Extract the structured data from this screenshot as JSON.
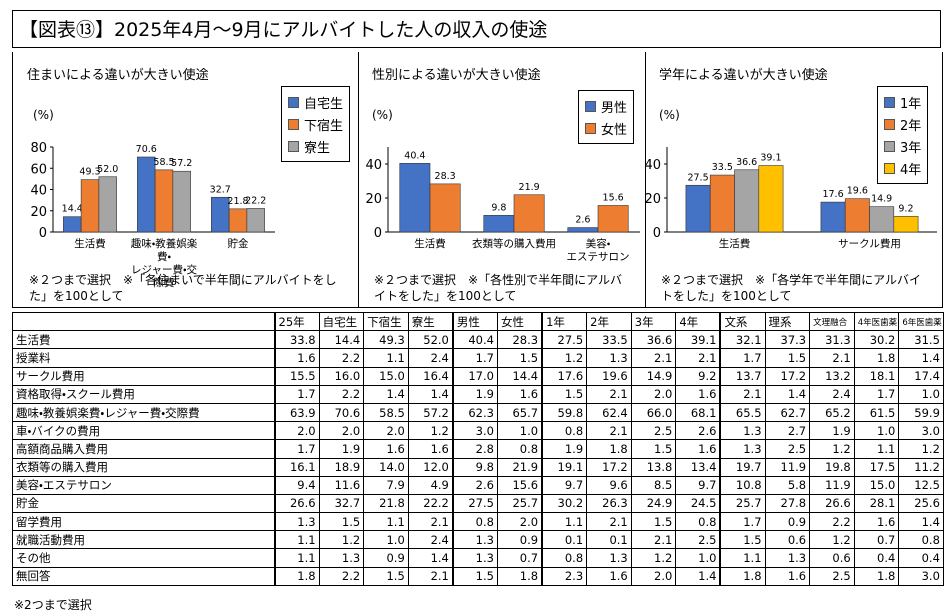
{
  "title": "【図表⑬】2025年4月～9月にアルバイトした人の収入の使途",
  "chart_data": [
    {
      "type": "bar",
      "title": "住まいによる違いが大きい使途",
      "y_label": "(%)",
      "note": "※２つまで選択　※「各住まいで半年間にアルバイトをした」を100として",
      "categories": [
        "生活費",
        "趣味・教養娯楽費・\nレジャー費・交際費",
        "貯金"
      ],
      "series": [
        {
          "name": "自宅生",
          "color": "#4472c4",
          "values": [
            14.4,
            70.6,
            32.7
          ],
          "value_labels": [
            "14.4",
            "70.6",
            "32.7"
          ]
        },
        {
          "name": "下宿生",
          "color": "#ed7d31",
          "values": [
            49.3,
            58.5,
            21.8
          ],
          "value_labels": [
            "49.3",
            "58.5",
            "21.8"
          ]
        },
        {
          "name": "寮生",
          "color": "#a5a5a5",
          "values": [
            52.0,
            57.2,
            22.2
          ],
          "value_labels": [
            "52.0",
            "57.2",
            "22.2"
          ]
        }
      ],
      "ylim": [
        0,
        80
      ],
      "yticks": [
        0,
        20,
        40,
        60,
        80
      ],
      "legend": "upper right"
    },
    {
      "type": "bar",
      "title": "性別による違いが大きい使途",
      "y_label": "(%)",
      "note": "※２つまで選択　※「各性別で半年間にアルバイトをした」を100として",
      "categories": [
        "生活費",
        "衣類等の購入費用",
        "美容・\nエステサロン"
      ],
      "series": [
        {
          "name": "男性",
          "color": "#4472c4",
          "values": [
            40.4,
            9.8,
            2.6
          ],
          "value_labels": [
            "40.4",
            "9.8",
            "2.6"
          ]
        },
        {
          "name": "女性",
          "color": "#ed7d31",
          "values": [
            28.3,
            21.9,
            15.6
          ],
          "value_labels": [
            "28.3",
            "21.9",
            "15.6"
          ]
        }
      ],
      "ylim": [
        0,
        50
      ],
      "yticks": [
        0,
        20,
        40
      ],
      "legend": "upper right"
    },
    {
      "type": "bar",
      "title": "学年による違いが大きい使途",
      "y_label": "(%)",
      "note": "※２つまで選択　※「各学年で半年間にアルバイトをした」を100として",
      "categories": [
        "生活費",
        "サークル費用"
      ],
      "series": [
        {
          "name": "1年",
          "color": "#4472c4",
          "values": [
            27.5,
            17.6
          ],
          "value_labels": [
            "27.5",
            "17.6"
          ]
        },
        {
          "name": "2年",
          "color": "#ed7d31",
          "values": [
            33.5,
            19.6
          ],
          "value_labels": [
            "33.5",
            "19.6"
          ]
        },
        {
          "name": "3年",
          "color": "#a5a5a5",
          "values": [
            36.6,
            14.9
          ],
          "value_labels": [
            "36.6",
            "14.9"
          ]
        },
        {
          "name": "4年",
          "color": "#ffc000",
          "values": [
            39.1,
            9.2
          ],
          "value_labels": [
            "39.1",
            "9.2"
          ]
        }
      ],
      "ylim": [
        0,
        50
      ],
      "yticks": [
        0,
        20,
        40
      ],
      "legend": "upper right"
    }
  ],
  "table": {
    "header": [
      "25年",
      "自宅生",
      "下宿生",
      "寮生",
      "男性",
      "女性",
      "1年",
      "2年",
      "3年",
      "4年",
      "文系",
      "理系",
      "文理融合",
      "4年医歯薬",
      "6年医歯薬"
    ],
    "rows": [
      [
        "生活費",
        "33.8",
        "14.4",
        "49.3",
        "52.0",
        "40.4",
        "28.3",
        "27.5",
        "33.5",
        "36.6",
        "39.1",
        "32.1",
        "37.3",
        "31.3",
        "30.2",
        "31.5"
      ],
      [
        "授業料",
        "1.6",
        "2.2",
        "1.1",
        "2.4",
        "1.7",
        "1.5",
        "1.2",
        "1.3",
        "2.1",
        "2.1",
        "1.7",
        "1.5",
        "2.1",
        "1.8",
        "1.4"
      ],
      [
        "サークル費用",
        "15.5",
        "16.0",
        "15.0",
        "16.4",
        "17.0",
        "14.4",
        "17.6",
        "19.6",
        "14.9",
        "9.2",
        "13.7",
        "17.2",
        "13.2",
        "18.1",
        "17.4"
      ],
      [
        "資格取得・スクール費用",
        "1.7",
        "2.2",
        "1.4",
        "1.4",
        "1.9",
        "1.6",
        "1.5",
        "2.1",
        "2.0",
        "1.6",
        "2.1",
        "1.4",
        "2.4",
        "1.7",
        "1.0"
      ],
      [
        "趣味・教養娯楽費・レジャー費・交際費",
        "63.9",
        "70.6",
        "58.5",
        "57.2",
        "62.3",
        "65.7",
        "59.8",
        "62.4",
        "66.0",
        "68.1",
        "65.5",
        "62.7",
        "65.2",
        "61.5",
        "59.9"
      ],
      [
        "車・バイクの費用",
        "2.0",
        "2.0",
        "2.0",
        "1.2",
        "3.0",
        "1.0",
        "0.8",
        "2.1",
        "2.5",
        "2.6",
        "1.3",
        "2.7",
        "1.9",
        "1.0",
        "3.0"
      ],
      [
        "高額商品購入費用",
        "1.7",
        "1.9",
        "1.6",
        "1.6",
        "2.8",
        "0.8",
        "1.9",
        "1.8",
        "1.5",
        "1.6",
        "1.3",
        "2.5",
        "1.2",
        "1.1",
        "1.2"
      ],
      [
        "衣類等の購入費用",
        "16.1",
        "18.9",
        "14.0",
        "12.0",
        "9.8",
        "21.9",
        "19.1",
        "17.2",
        "13.8",
        "13.4",
        "19.7",
        "11.9",
        "19.8",
        "17.5",
        "11.2"
      ],
      [
        "美容・エステサロン",
        "9.4",
        "11.6",
        "7.9",
        "4.9",
        "2.6",
        "15.6",
        "9.7",
        "9.6",
        "8.5",
        "9.7",
        "10.8",
        "5.8",
        "11.9",
        "15.0",
        "12.5"
      ],
      [
        "貯金",
        "26.6",
        "32.7",
        "21.8",
        "22.2",
        "27.5",
        "25.7",
        "30.2",
        "26.3",
        "24.9",
        "24.5",
        "25.7",
        "27.8",
        "26.6",
        "28.1",
        "25.6"
      ],
      [
        "留学費用",
        "1.3",
        "1.5",
        "1.1",
        "2.1",
        "0.8",
        "2.0",
        "1.1",
        "2.1",
        "1.5",
        "0.8",
        "1.7",
        "0.9",
        "2.2",
        "1.6",
        "1.4"
      ],
      [
        "就職活動費用",
        "1.1",
        "1.2",
        "1.0",
        "2.4",
        "1.3",
        "0.9",
        "0.1",
        "0.1",
        "2.1",
        "2.5",
        "1.5",
        "0.6",
        "1.2",
        "0.7",
        "0.8"
      ],
      [
        "その他",
        "1.1",
        "1.3",
        "0.9",
        "1.4",
        "1.3",
        "0.7",
        "0.8",
        "1.3",
        "1.2",
        "1.0",
        "1.1",
        "1.3",
        "0.6",
        "0.4",
        "0.4"
      ],
      [
        "無回答",
        "1.8",
        "2.2",
        "1.5",
        "2.1",
        "1.5",
        "1.8",
        "2.3",
        "1.6",
        "2.0",
        "1.4",
        "1.8",
        "1.6",
        "2.5",
        "1.8",
        "3.0"
      ]
    ]
  },
  "footnote": "※2つまで選択"
}
